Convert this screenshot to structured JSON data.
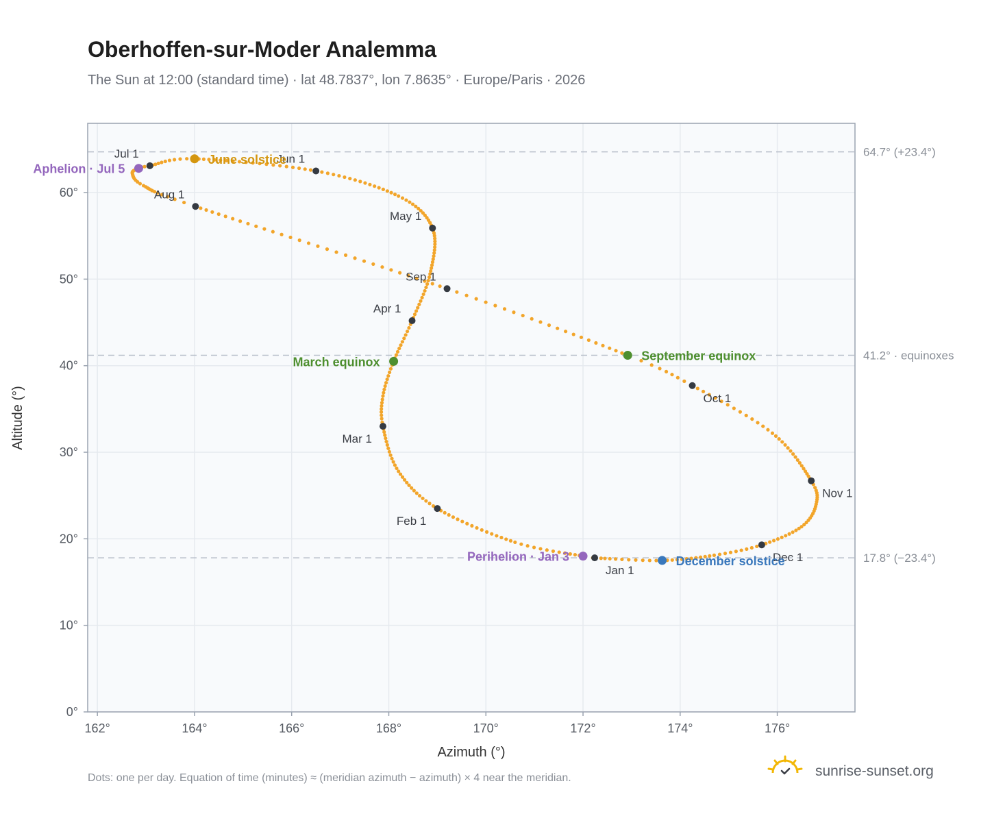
{
  "header": {
    "title": "Oberhoffen-sur-Moder Analemma",
    "subtitle": "The Sun at 12:00 (standard time) · lat 48.7837°, lon 7.8635° · Europe/Paris · 2026"
  },
  "footer": {
    "note": "Dots: one per day. Equation of time (minutes) ≈ (meridian azimuth − azimuth) × 4 near the meridian.",
    "brand": "sunrise-sunset.org"
  },
  "colors": {
    "path": "#f2a52a",
    "month_marker": "#353a42",
    "solstice_june": "#d4960f",
    "solstice_december": "#3a78bc",
    "equinox": "#4e8f2f",
    "apsis": "#9467bd",
    "grid": "#e6eaef",
    "plot_bg": "#f8fafc",
    "frame": "#9aa3b0",
    "ref_line": "#b8bfca"
  },
  "chart_data": {
    "type": "scatter",
    "xlabel": "Azimuth (°)",
    "ylabel": "Altitude (°)",
    "xlim": [
      161.8,
      177.6
    ],
    "ylim": [
      0,
      68
    ],
    "x_ticks": [
      162,
      164,
      166,
      168,
      170,
      172,
      174,
      176
    ],
    "x_tick_labels": [
      "162°",
      "164°",
      "166°",
      "168°",
      "170°",
      "172°",
      "174°",
      "176°"
    ],
    "y_ticks": [
      0,
      10,
      20,
      30,
      40,
      50,
      60
    ],
    "y_tick_labels": [
      "0°",
      "10°",
      "20°",
      "30°",
      "40°",
      "50°",
      "60°"
    ],
    "grid": true,
    "series": [
      {
        "name": "",
        "style": "daily dots",
        "anchors": [
          {
            "date": "Jan 1",
            "day": 1,
            "x": 172.24,
            "y": 17.8
          },
          {
            "date": "Jan 3",
            "day": 3,
            "x": 172.0,
            "y": 18.0
          },
          {
            "date": "Jan 15",
            "day": 15,
            "x": 170.6,
            "y": 19.6
          },
          {
            "date": "Feb 1",
            "day": 32,
            "x": 169.0,
            "y": 23.5
          },
          {
            "date": "Feb 15",
            "day": 46,
            "x": 168.2,
            "y": 27.8
          },
          {
            "date": "Mar 1",
            "day": 60,
            "x": 167.88,
            "y": 33.0
          },
          {
            "date": "Mar 10",
            "day": 69,
            "x": 167.88,
            "y": 36.5
          },
          {
            "date": "Mar 20",
            "day": 79,
            "x": 168.1,
            "y": 40.5
          },
          {
            "date": "Apr 1",
            "day": 91,
            "x": 168.48,
            "y": 45.2
          },
          {
            "date": "Apr 15",
            "day": 105,
            "x": 168.85,
            "y": 50.6
          },
          {
            "date": "May 1",
            "day": 121,
            "x": 168.9,
            "y": 55.9
          },
          {
            "date": "May 15",
            "day": 135,
            "x": 168.2,
            "y": 59.6
          },
          {
            "date": "Jun 1",
            "day": 152,
            "x": 166.5,
            "y": 62.5
          },
          {
            "date": "Jun 21",
            "day": 172,
            "x": 164.0,
            "y": 63.9
          },
          {
            "date": "Jul 1",
            "day": 182,
            "x": 163.08,
            "y": 63.1
          },
          {
            "date": "Jul 5",
            "day": 186,
            "x": 162.85,
            "y": 62.8
          },
          {
            "date": "Jul 12",
            "day": 193,
            "x": 162.72,
            "y": 62.2
          },
          {
            "date": "Jul 20",
            "day": 201,
            "x": 162.95,
            "y": 60.8
          },
          {
            "date": "Aug 1",
            "day": 213,
            "x": 164.02,
            "y": 58.4
          },
          {
            "date": "Sep 1",
            "day": 244,
            "x": 169.2,
            "y": 48.9
          },
          {
            "date": "Sep 23",
            "day": 266,
            "x": 172.92,
            "y": 41.2
          },
          {
            "date": "Oct 1",
            "day": 274,
            "x": 174.25,
            "y": 37.7
          },
          {
            "date": "Oct 15",
            "day": 288,
            "x": 175.9,
            "y": 32.2
          },
          {
            "date": "Nov 1",
            "day": 305,
            "x": 176.7,
            "y": 26.7
          },
          {
            "date": "Nov 10",
            "day": 314,
            "x": 176.8,
            "y": 24.0
          },
          {
            "date": "Nov 20",
            "day": 324,
            "x": 176.5,
            "y": 21.4
          },
          {
            "date": "Dec 1",
            "day": 335,
            "x": 175.68,
            "y": 19.3
          },
          {
            "date": "Dec 10",
            "day": 344,
            "x": 174.7,
            "y": 18.1
          },
          {
            "date": "Dec 21",
            "day": 355,
            "x": 173.63,
            "y": 17.5
          },
          {
            "date": "Dec 31",
            "day": 365,
            "x": 172.37,
            "y": 17.75
          }
        ]
      }
    ],
    "month_markers": [
      {
        "label": "Jan 1",
        "x": 172.24,
        "y": 17.8,
        "label_pos": "below-right"
      },
      {
        "label": "Feb 1",
        "x": 169.0,
        "y": 23.5,
        "label_pos": "below-left"
      },
      {
        "label": "Mar 1",
        "x": 167.88,
        "y": 33.0,
        "label_pos": "below-left"
      },
      {
        "label": "Apr 1",
        "x": 168.48,
        "y": 45.2,
        "label_pos": "above-left"
      },
      {
        "label": "May 1",
        "x": 168.9,
        "y": 55.9,
        "label_pos": "above-left"
      },
      {
        "label": "Jun 1",
        "x": 166.5,
        "y": 62.5,
        "label_pos": "above-left"
      },
      {
        "label": "Jul 1",
        "x": 163.08,
        "y": 63.1,
        "label_pos": "above-left"
      },
      {
        "label": "Aug 1",
        "x": 164.02,
        "y": 58.4,
        "label_pos": "above-left"
      },
      {
        "label": "Sep 1",
        "x": 169.2,
        "y": 48.9,
        "label_pos": "above-left"
      },
      {
        "label": "Oct 1",
        "x": 174.25,
        "y": 37.7,
        "label_pos": "below-right"
      },
      {
        "label": "Nov 1",
        "x": 176.7,
        "y": 26.7,
        "label_pos": "below-right"
      },
      {
        "label": "Dec 1",
        "x": 175.68,
        "y": 19.3,
        "label_pos": "below-right"
      }
    ],
    "events": [
      {
        "label": "June solstice",
        "x": 164.0,
        "y": 63.9,
        "color": "#d4960f",
        "label_side": "right"
      },
      {
        "label": "December solstice",
        "x": 173.63,
        "y": 17.5,
        "color": "#3a78bc",
        "label_side": "right"
      },
      {
        "label": "March equinox",
        "x": 168.1,
        "y": 40.5,
        "color": "#4e8f2f",
        "label_side": "left"
      },
      {
        "label": "September equinox",
        "x": 172.92,
        "y": 41.2,
        "color": "#4e8f2f",
        "label_side": "right"
      },
      {
        "label": "Aphelion · Jul 5",
        "x": 162.85,
        "y": 62.8,
        "color": "#9467bd",
        "label_side": "left"
      },
      {
        "label": "Perihelion · Jan 3",
        "x": 172.0,
        "y": 18.0,
        "color": "#9467bd",
        "label_side": "left"
      }
    ],
    "reference_lines": [
      {
        "y": 64.7,
        "label": "64.7° (+23.4°)"
      },
      {
        "y": 41.2,
        "label": "41.2° · equinoxes"
      },
      {
        "y": 17.8,
        "label": "17.8° (−23.4°)"
      }
    ]
  }
}
